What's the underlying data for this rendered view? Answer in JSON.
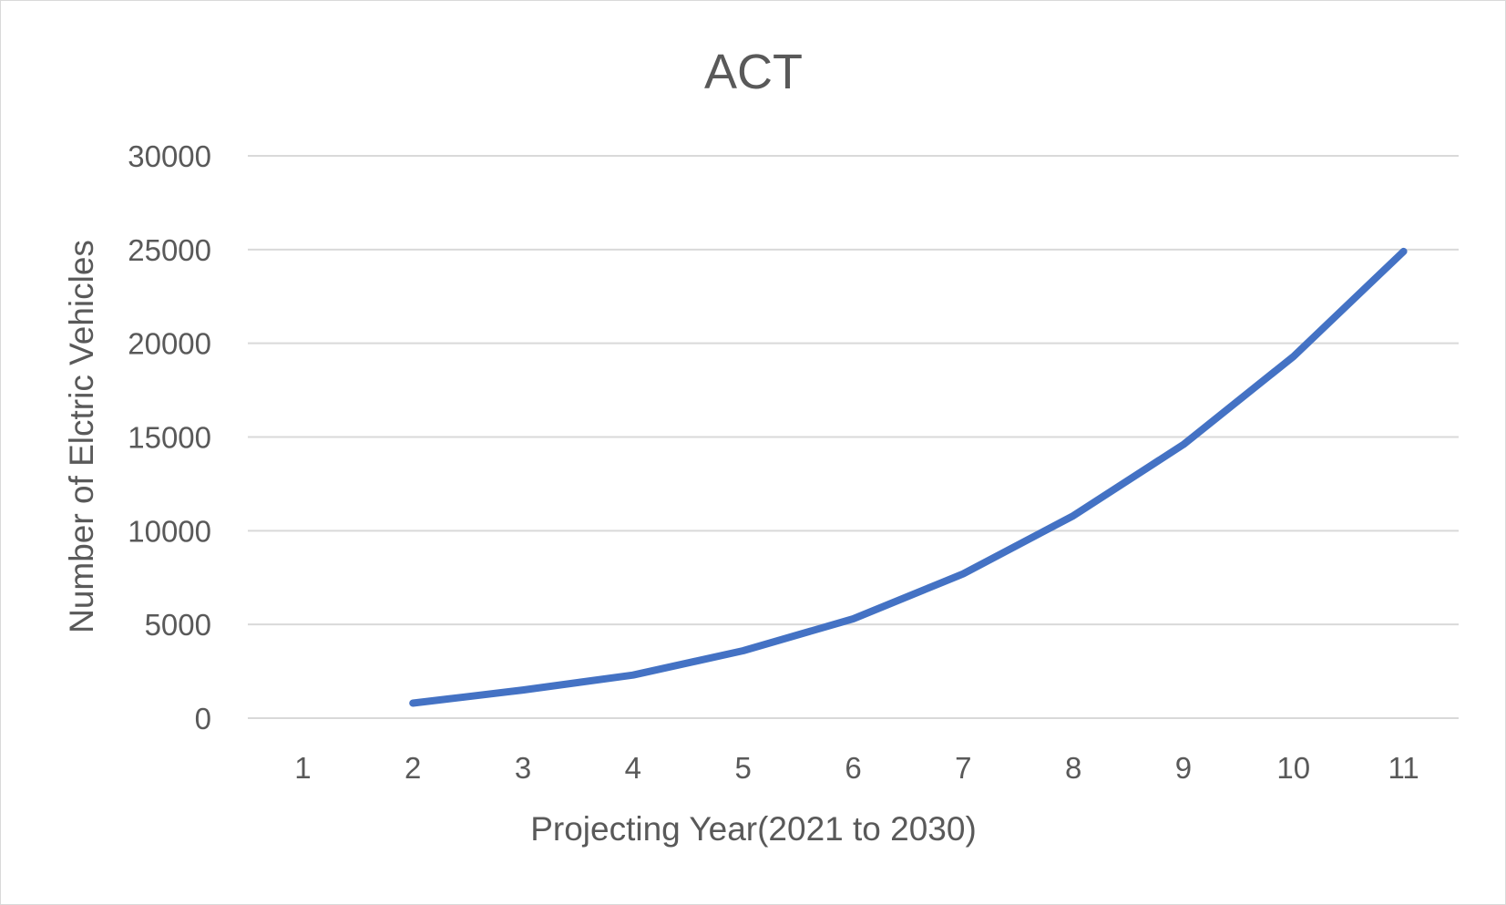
{
  "chart_data": {
    "type": "line",
    "title": "ACT",
    "xlabel": "Projecting Year(2021 to 2030)",
    "ylabel": "Number of Elctric Vehicles",
    "categories": [
      "1",
      "2",
      "3",
      "4",
      "5",
      "6",
      "7",
      "8",
      "9",
      "10",
      "11"
    ],
    "y_ticks": [
      "0",
      "5000",
      "10000",
      "15000",
      "20000",
      "25000",
      "30000"
    ],
    "ylim": [
      0,
      30000
    ],
    "grid": true,
    "legend": "none",
    "series": [
      {
        "color": "#4472c4",
        "values": [
          null,
          800,
          1500,
          2300,
          3600,
          5300,
          7700,
          10800,
          14600,
          19300,
          24900
        ]
      }
    ]
  }
}
